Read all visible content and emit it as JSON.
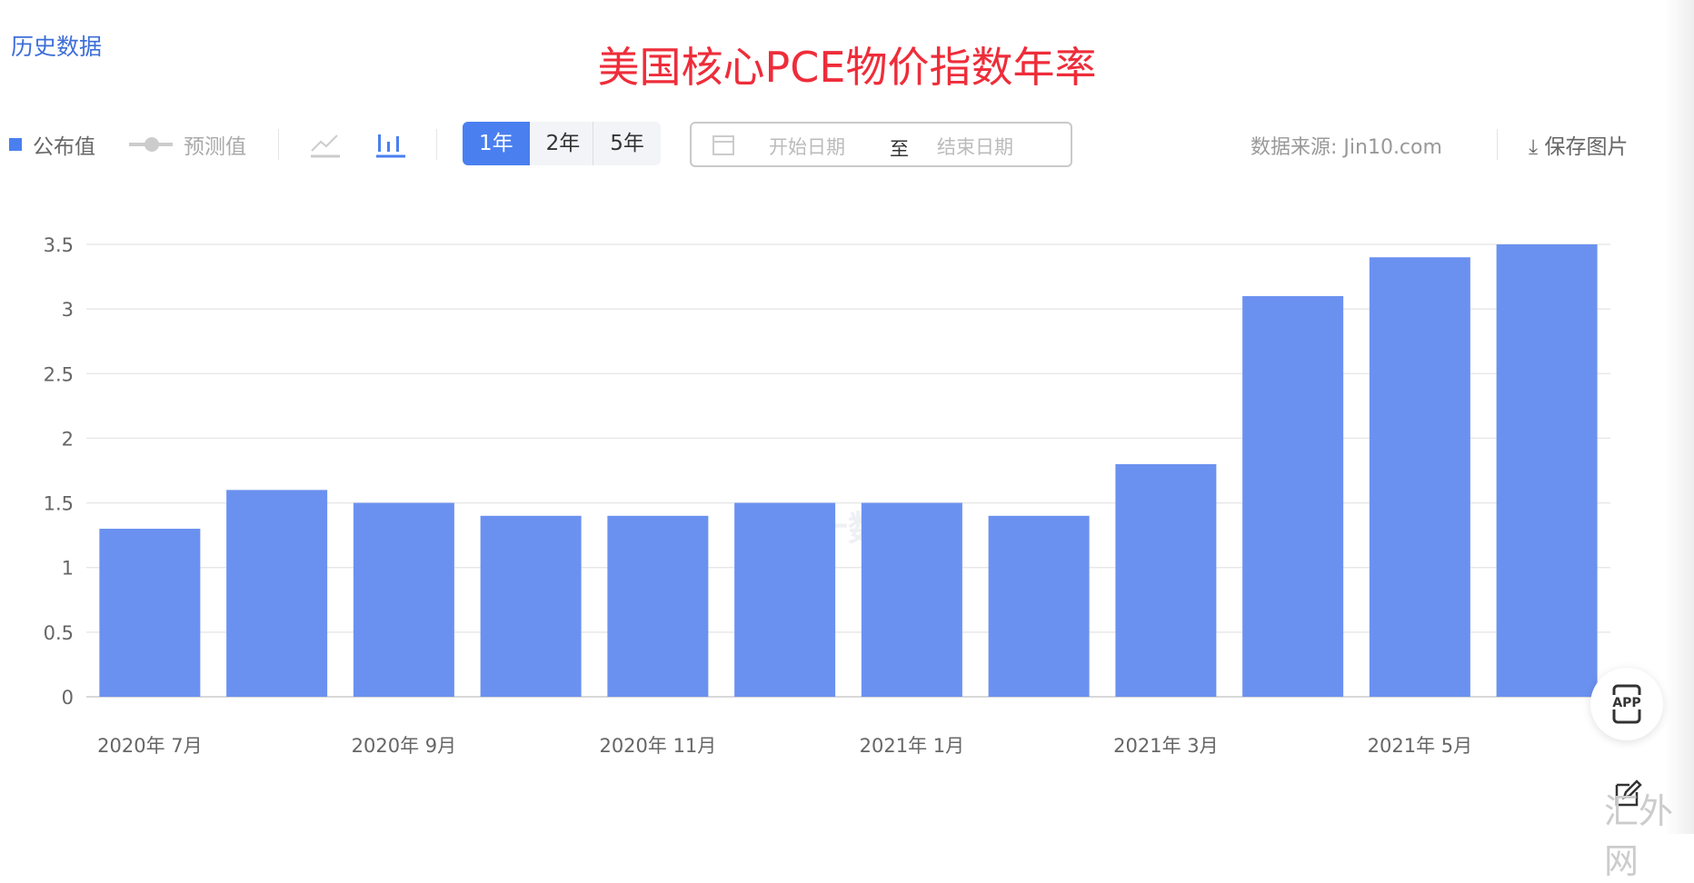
{
  "header": {
    "history": "历史数据",
    "title": "美国核心PCE物价指数年率"
  },
  "toolbar": {
    "legend_actual": "公布值",
    "legend_forecast": "预测值",
    "icons": [
      "line-chart-icon",
      "bar-chart-icon"
    ],
    "ranges": [
      "1年",
      "2年",
      "5年"
    ],
    "range_selected": "1年",
    "start_placeholder": "开始日期",
    "to": "至",
    "end_placeholder": "结束日期",
    "source": "数据来源: Jin10.com",
    "save": "保存图片"
  },
  "watermark": {
    "center": "金十数据",
    "corner": "汇外网"
  },
  "app_label": "APP",
  "colors": {
    "bar": "#6b91f0",
    "accent": "#4a7ff0",
    "title": "#ee2d3a"
  },
  "chart_data": {
    "type": "bar",
    "title": "美国核心PCE物价指数年率",
    "categories": [
      "2020-07",
      "2020-08",
      "2020-09",
      "2020-10",
      "2020-11",
      "2020-12",
      "2021-01",
      "2021-02",
      "2021-03",
      "2021-04",
      "2021-05",
      "2021-06"
    ],
    "values": [
      1.3,
      1.6,
      1.5,
      1.4,
      1.4,
      1.5,
      1.5,
      1.4,
      1.8,
      3.1,
      3.4,
      3.5
    ],
    "xtick_labels": [
      "2020年 7月",
      "2020年 9月",
      "2020年 11月",
      "2021年 1月",
      "2021年 3月",
      "2021年 5月"
    ],
    "yticks": [
      "0",
      "0.5",
      "1",
      "1.5",
      "2",
      "2.5",
      "3",
      "3.5"
    ],
    "ylim": [
      0,
      3.5
    ],
    "grid": true,
    "legend": "top-left"
  }
}
